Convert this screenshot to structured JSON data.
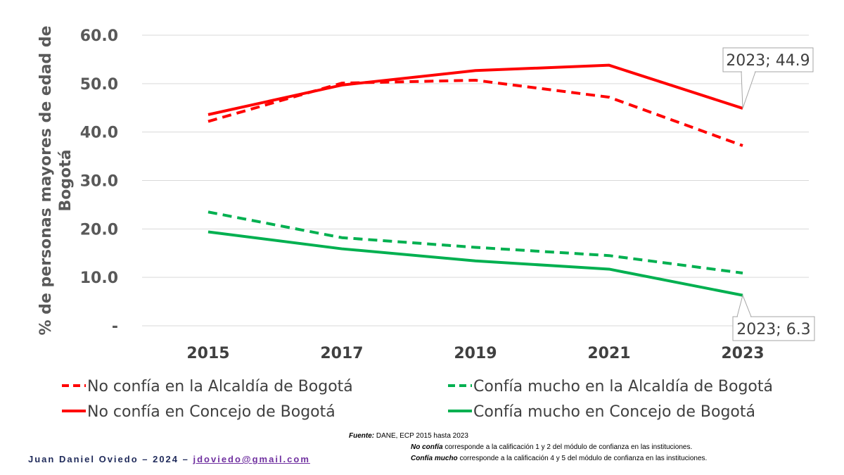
{
  "chart_data": {
    "type": "line",
    "xlabel": "",
    "ylabel": "% de personas mayores de edad de Bogotá",
    "ylim": [
      0,
      60
    ],
    "yticks": [
      "-",
      "10.0",
      "20.0",
      "30.0",
      "40.0",
      "50.0",
      "60.0"
    ],
    "x": [
      "2015",
      "2017",
      "2019",
      "2021",
      "2023"
    ],
    "grid": true,
    "legend_position": "bottom",
    "series": [
      {
        "name": "No confía en la Alcaldía de Bogotá",
        "values": [
          42.2,
          50.1,
          50.7,
          47.2,
          37.2
        ],
        "color": "#ff0000",
        "dashed": true
      },
      {
        "name": "Confía mucho en la Alcaldía de Bogotá",
        "values": [
          23.5,
          18.2,
          16.2,
          14.5,
          10.9
        ],
        "color": "#00b050",
        "dashed": true
      },
      {
        "name": "No confía en Concejo de Bogotá",
        "values": [
          43.6,
          49.7,
          52.7,
          53.8,
          44.9
        ],
        "color": "#ff0000",
        "dashed": false
      },
      {
        "name": "Confía mucho en Concejo de Bogotá",
        "values": [
          19.4,
          15.9,
          13.4,
          11.7,
          6.3
        ],
        "color": "#00b050",
        "dashed": false
      }
    ],
    "annotations": [
      {
        "text": "2023;  44.9",
        "series": 2,
        "x": "2023"
      },
      {
        "text": "2023;  6.3",
        "series": 3,
        "x": "2023"
      }
    ]
  },
  "footer": {
    "source_label": "Fuente:",
    "source_text": " DANE, ECP 2015 hasta 2023",
    "note1_label": "No confía",
    "note1_text": " corresponde a la calificación 1 y 2 del módulo de confianza en las instituciones.",
    "note2_label": "Confía mucho",
    "note2_text": " corresponde a la calificación 4 y 5 del módulo de confianza en las instituciones.",
    "author": "Juan Daniel Oviedo – 2024 – ",
    "email": "jdoviedo@gmail.com"
  }
}
